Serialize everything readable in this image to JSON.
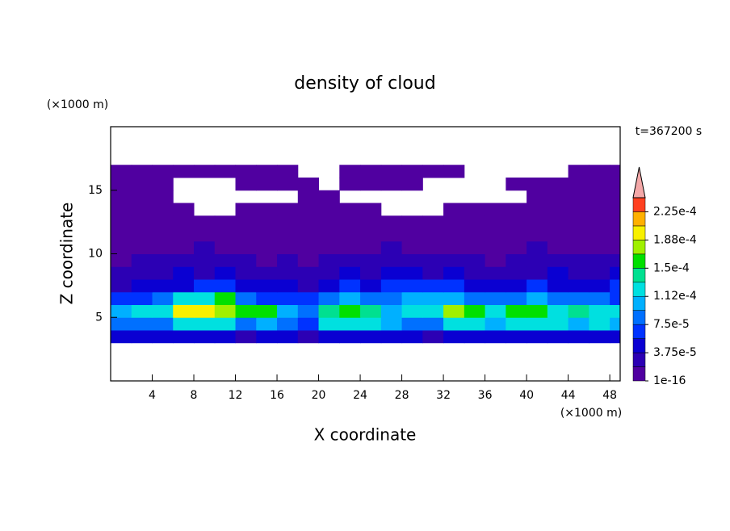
{
  "chart_data": {
    "type": "contour",
    "title": "density of cloud",
    "x_label": "X coordinate",
    "y_label": "Z coordinate",
    "x_unit": "(×1000 m)",
    "y_unit": "(×1000 m)",
    "time_label": "t=367200 s",
    "xlim": [
      0,
      49
    ],
    "ylim": [
      0,
      20
    ],
    "xticks": [
      4,
      8,
      12,
      16,
      20,
      24,
      28,
      32,
      36,
      40,
      44,
      48
    ],
    "yticks": [
      5,
      10,
      15
    ],
    "x": [
      1,
      3,
      5,
      7,
      9,
      11,
      13,
      15,
      17,
      19,
      21,
      23,
      25,
      27,
      29,
      31,
      33,
      35,
      37,
      39,
      41,
      43,
      45,
      47,
      49
    ],
    "z": [
      3.5,
      4.5,
      5.5,
      6.5,
      7.5,
      8.5,
      9.5,
      10.5,
      11.5,
      12.5,
      13.5,
      14.5,
      15.5,
      16.5
    ],
    "values": [
      [
        5e-05,
        5e-05,
        5e-05,
        5e-05,
        5e-05,
        5e-05,
        3e-05,
        5e-05,
        5e-05,
        3e-05,
        5e-05,
        5e-05,
        5e-05,
        5e-05,
        5e-05,
        3e-05,
        5e-05,
        5e-05,
        5e-05,
        5e-05,
        5e-05,
        5e-05,
        5e-05,
        5e-05,
        5e-05
      ],
      [
        9e-05,
        9e-05,
        9e-05,
        0.00012,
        0.00012,
        0.00012,
        8e-05,
        0.0001,
        8e-05,
        7e-05,
        0.00012,
        0.00012,
        0.00012,
        0.0001,
        9e-05,
        8e-05,
        0.00012,
        0.00012,
        0.00011,
        0.00012,
        0.00012,
        0.00012,
        0.00011,
        0.00012,
        0.0001
      ],
      [
        0.0001,
        0.00012,
        0.00013,
        0.00019,
        0.0002,
        0.00018,
        0.00016,
        0.00015,
        0.0001,
        8e-05,
        0.00014,
        0.00016,
        0.00014,
        0.00011,
        0.00012,
        0.00013,
        0.00017,
        0.00015,
        0.00013,
        0.00015,
        0.00015,
        0.00013,
        0.00014,
        0.00012,
        0.00013
      ],
      [
        6e-05,
        7e-05,
        8e-05,
        0.00012,
        0.00013,
        0.00016,
        9e-05,
        7e-05,
        6e-05,
        6e-05,
        8e-05,
        0.0001,
        8e-05,
        9e-05,
        0.0001,
        0.0001,
        0.00011,
        9e-05,
        8e-05,
        9e-05,
        0.0001,
        8e-05,
        9e-05,
        8e-05,
        7e-05
      ],
      [
        3e-05,
        4e-05,
        5e-05,
        5e-05,
        6e-05,
        7e-05,
        5e-05,
        4e-05,
        4e-05,
        3e-05,
        5e-05,
        6e-05,
        5e-05,
        6e-05,
        7e-05,
        6e-05,
        6e-05,
        5e-05,
        4e-05,
        5e-05,
        6e-05,
        5e-05,
        4e-05,
        5e-05,
        6e-05
      ],
      [
        2e-05,
        3e-05,
        3e-05,
        4e-05,
        3e-05,
        4e-05,
        3e-05,
        2e-05,
        3e-05,
        2e-05,
        3e-05,
        4e-05,
        3e-05,
        4e-05,
        4e-05,
        3e-05,
        4e-05,
        3e-05,
        3e-05,
        2e-05,
        3e-05,
        4e-05,
        3e-05,
        3e-05,
        4e-05
      ],
      [
        1e-05,
        2e-05,
        2e-05,
        3e-05,
        2e-05,
        2e-05,
        2e-05,
        1e-05,
        2e-05,
        1e-05,
        2e-05,
        3e-05,
        2e-05,
        2e-05,
        3e-05,
        2e-05,
        2e-05,
        2e-05,
        1e-05,
        2e-05,
        2e-05,
        3e-05,
        2e-05,
        2e-05,
        3e-05
      ],
      [
        1e-05,
        1e-05,
        1e-05,
        1e-05,
        2e-05,
        1e-05,
        1e-05,
        1e-05,
        1e-05,
        1e-05,
        1e-05,
        1e-05,
        1e-05,
        2e-05,
        1e-05,
        1e-05,
        1e-05,
        1e-05,
        1e-05,
        1e-05,
        2e-05,
        1e-05,
        1e-05,
        1e-05,
        1e-05
      ],
      [
        1e-05,
        1e-05,
        1e-05,
        1e-05,
        1e-05,
        1e-05,
        1e-05,
        1e-05,
        1e-05,
        1e-05,
        1e-05,
        1e-05,
        1e-05,
        1e-05,
        1e-05,
        1e-05,
        1e-05,
        1e-05,
        1e-05,
        1e-05,
        1e-05,
        1e-05,
        1e-05,
        1e-05,
        1e-05
      ],
      [
        1e-05,
        1e-05,
        1e-05,
        1e-05,
        1e-05,
        1e-05,
        1e-05,
        1e-05,
        1e-05,
        1e-05,
        1e-05,
        1e-05,
        1e-05,
        1e-05,
        1e-05,
        1e-05,
        1e-05,
        1e-05,
        1e-05,
        1e-05,
        1e-05,
        1e-05,
        1e-05,
        1e-05,
        1e-05
      ],
      [
        1e-05,
        1e-05,
        1e-05,
        1e-05,
        null,
        null,
        1e-05,
        1e-05,
        1e-05,
        1e-05,
        1e-05,
        1e-05,
        1e-05,
        null,
        null,
        null,
        1e-05,
        1e-05,
        1e-05,
        1e-05,
        1e-05,
        1e-05,
        1e-05,
        1e-05,
        1e-05
      ],
      [
        1e-05,
        1e-05,
        1e-05,
        null,
        null,
        null,
        null,
        null,
        null,
        1e-05,
        1e-05,
        null,
        null,
        null,
        null,
        null,
        null,
        null,
        null,
        null,
        1e-05,
        1e-05,
        1e-05,
        1e-05,
        1e-05
      ],
      [
        1e-05,
        1e-05,
        1e-05,
        null,
        null,
        null,
        1e-05,
        1e-05,
        1e-05,
        1e-05,
        null,
        1e-05,
        1e-05,
        1e-05,
        1e-05,
        null,
        null,
        null,
        null,
        1e-05,
        1e-05,
        1e-05,
        1e-05,
        1e-05,
        1e-05
      ],
      [
        1e-05,
        1e-05,
        1e-05,
        1e-05,
        1e-05,
        1e-05,
        1e-05,
        1e-05,
        1e-05,
        null,
        null,
        1e-05,
        1e-05,
        1e-05,
        1e-05,
        1e-05,
        1e-05,
        null,
        null,
        null,
        null,
        null,
        1e-05,
        1e-05,
        1e-05
      ]
    ],
    "levels": [
      1e-16,
      1.875e-05,
      3.75e-05,
      5.625e-05,
      7.5e-05,
      9.375e-05,
      0.0001125,
      0.00013125,
      0.00015,
      0.00016875,
      0.0001875,
      0.00020625,
      0.000225,
      0.00024375
    ],
    "colors": [
      "#5000a0",
      "#2c00b4",
      "#0a00d2",
      "#0032ff",
      "#0070ff",
      "#00b0ff",
      "#00e0e0",
      "#00e090",
      "#00e000",
      "#a0f000",
      "#f8f000",
      "#ffb000",
      "#ff4020"
    ],
    "extend_color": "#f4a8a8",
    "colorbar_ticks": [
      {
        "value": 1e-16,
        "label": "1e-16"
      },
      {
        "value": 3.75e-05,
        "label": "3.75e-5"
      },
      {
        "value": 7.5e-05,
        "label": "7.5e-5"
      },
      {
        "value": 0.0001125,
        "label": "1.12e-4"
      },
      {
        "value": 0.00015,
        "label": "1.5e-4"
      },
      {
        "value": 0.0001875,
        "label": "1.88e-4"
      },
      {
        "value": 0.000225,
        "label": "2.25e-4"
      }
    ]
  }
}
